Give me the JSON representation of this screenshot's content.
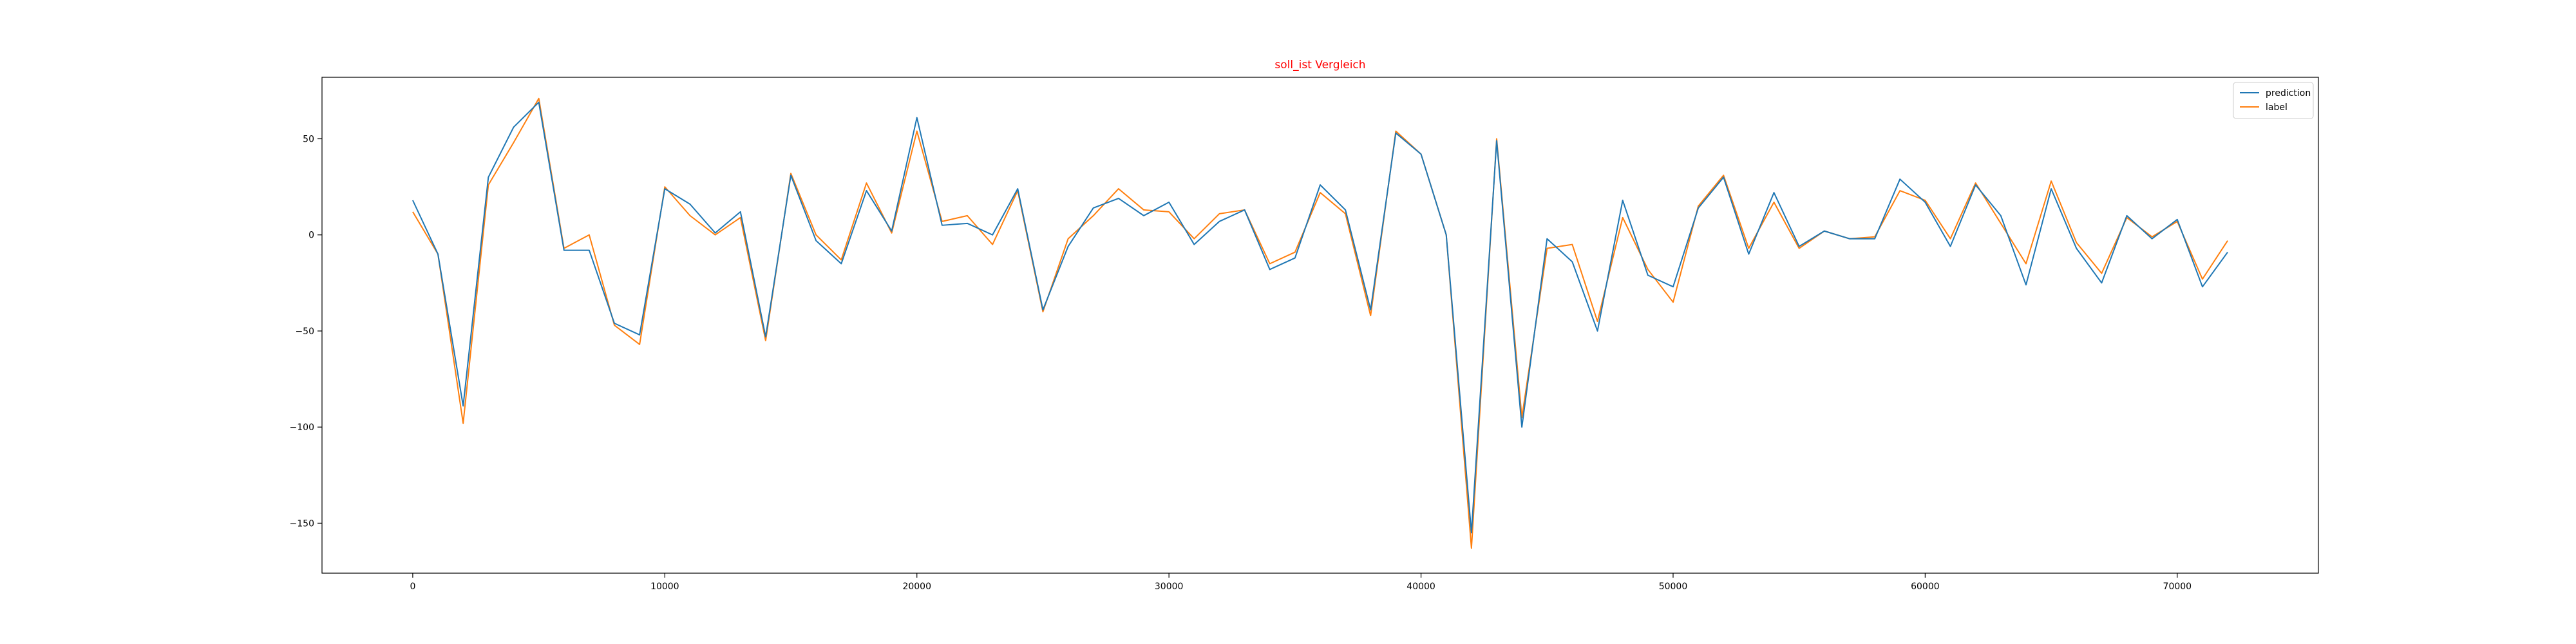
{
  "chart_data": {
    "type": "line",
    "title": "soll_ist Vergleich",
    "title_color": "#ff0000",
    "xlabel": "",
    "ylabel": "",
    "xlim": [
      -3600,
      75600
    ],
    "ylim": [
      -176,
      82
    ],
    "x_ticks": [
      0,
      10000,
      20000,
      30000,
      40000,
      50000,
      60000,
      70000
    ],
    "y_ticks": [
      -150,
      -100,
      -50,
      0,
      50
    ],
    "grid": false,
    "legend_position": "top-right",
    "x": [
      0,
      1000,
      2000,
      3000,
      4000,
      5000,
      6000,
      7000,
      8000,
      9000,
      10000,
      11000,
      12000,
      13000,
      14000,
      15000,
      16000,
      17000,
      18000,
      19000,
      20000,
      21000,
      22000,
      23000,
      24000,
      25000,
      26000,
      27000,
      28000,
      29000,
      30000,
      31000,
      32000,
      33000,
      34000,
      35000,
      36000,
      37000,
      38000,
      39000,
      40000,
      41000,
      42000,
      43000,
      44000,
      45000,
      46000,
      47000,
      48000,
      49000,
      50000,
      51000,
      52000,
      53000,
      54000,
      55000,
      56000,
      57000,
      58000,
      59000,
      60000,
      61000,
      62000,
      63000,
      64000,
      65000,
      66000,
      67000,
      68000,
      69000,
      70000,
      71000,
      72000
    ],
    "series": [
      {
        "name": "prediction",
        "color": "#1f77b4",
        "values": [
          18,
          -10,
          -89,
          30,
          56,
          69,
          -8,
          -8,
          -46,
          -52,
          24,
          16,
          1,
          12,
          -53,
          31,
          -3,
          -15,
          23,
          2,
          61,
          5,
          6,
          0,
          24,
          -39,
          -6,
          14,
          19,
          10,
          17,
          -5,
          7,
          13,
          -18,
          -12,
          26,
          13,
          -39,
          53,
          42,
          0,
          -155,
          49,
          -100,
          -2,
          -14,
          -50,
          18,
          -21,
          -27,
          14,
          30,
          -10,
          22,
          -6,
          2,
          -2,
          -2,
          29,
          17,
          -6,
          26,
          10,
          -26,
          24,
          -7,
          -25,
          10,
          -2,
          8,
          -27,
          -9
        ],
        "z": 2
      },
      {
        "name": "label",
        "color": "#ff7f0e",
        "values": [
          12,
          -10,
          -98,
          26,
          48,
          71,
          -7,
          0,
          -47,
          -57,
          25,
          10,
          0,
          9,
          -55,
          32,
          0,
          -13,
          27,
          1,
          54,
          7,
          10,
          -5,
          23,
          -40,
          -2,
          10,
          24,
          13,
          12,
          -2,
          11,
          13,
          -15,
          -9,
          22,
          11,
          -42,
          54,
          42,
          0,
          -163,
          50,
          -95,
          -7,
          -5,
          -45,
          9,
          -18,
          -35,
          15,
          31,
          -7,
          17,
          -7,
          2,
          -2,
          -1,
          23,
          18,
          -2,
          27,
          6,
          -15,
          28,
          -4,
          -20,
          9,
          -1,
          7,
          -23,
          -3
        ],
        "z": 1
      }
    ]
  }
}
